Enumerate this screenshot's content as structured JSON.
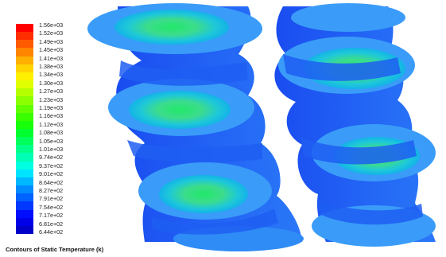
{
  "figure": {
    "caption": "Contours of Static Temperature (k)"
  },
  "legend": {
    "labels": [
      "1.56e+03",
      "1.52e+03",
      "1.49e+03",
      "1.45e+03",
      "1.41e+03",
      "1.38e+03",
      "1.34e+03",
      "1.30e+03",
      "1.27e+03",
      "1.23e+03",
      "1.19e+03",
      "1.16e+03",
      "1.12e+03",
      "1.08e+03",
      "1.05e+03",
      "1.01e+03",
      "9.74e+02",
      "9.37e+02",
      "9.01e+02",
      "8.64e+02",
      "8.27e+02",
      "7.91e+02",
      "7.54e+02",
      "7.17e+02",
      "6.81e+02",
      "6.44e+02"
    ],
    "colors": [
      "#ff0000",
      "#ff2e00",
      "#ff5a00",
      "#ff8500",
      "#ffb000",
      "#ffd400",
      "#fff000",
      "#e0ff00",
      "#b6ff00",
      "#8cff00",
      "#62ff00",
      "#3aff00",
      "#18ff0a",
      "#00ff2e",
      "#00ff5a",
      "#00ff88",
      "#00ffb4",
      "#00ffe0",
      "#00e4ff",
      "#00b8ff",
      "#008cff",
      "#0062ff",
      "#0038ff",
      "#000eff",
      "#0000e8",
      "#0000c8"
    ]
  }
}
